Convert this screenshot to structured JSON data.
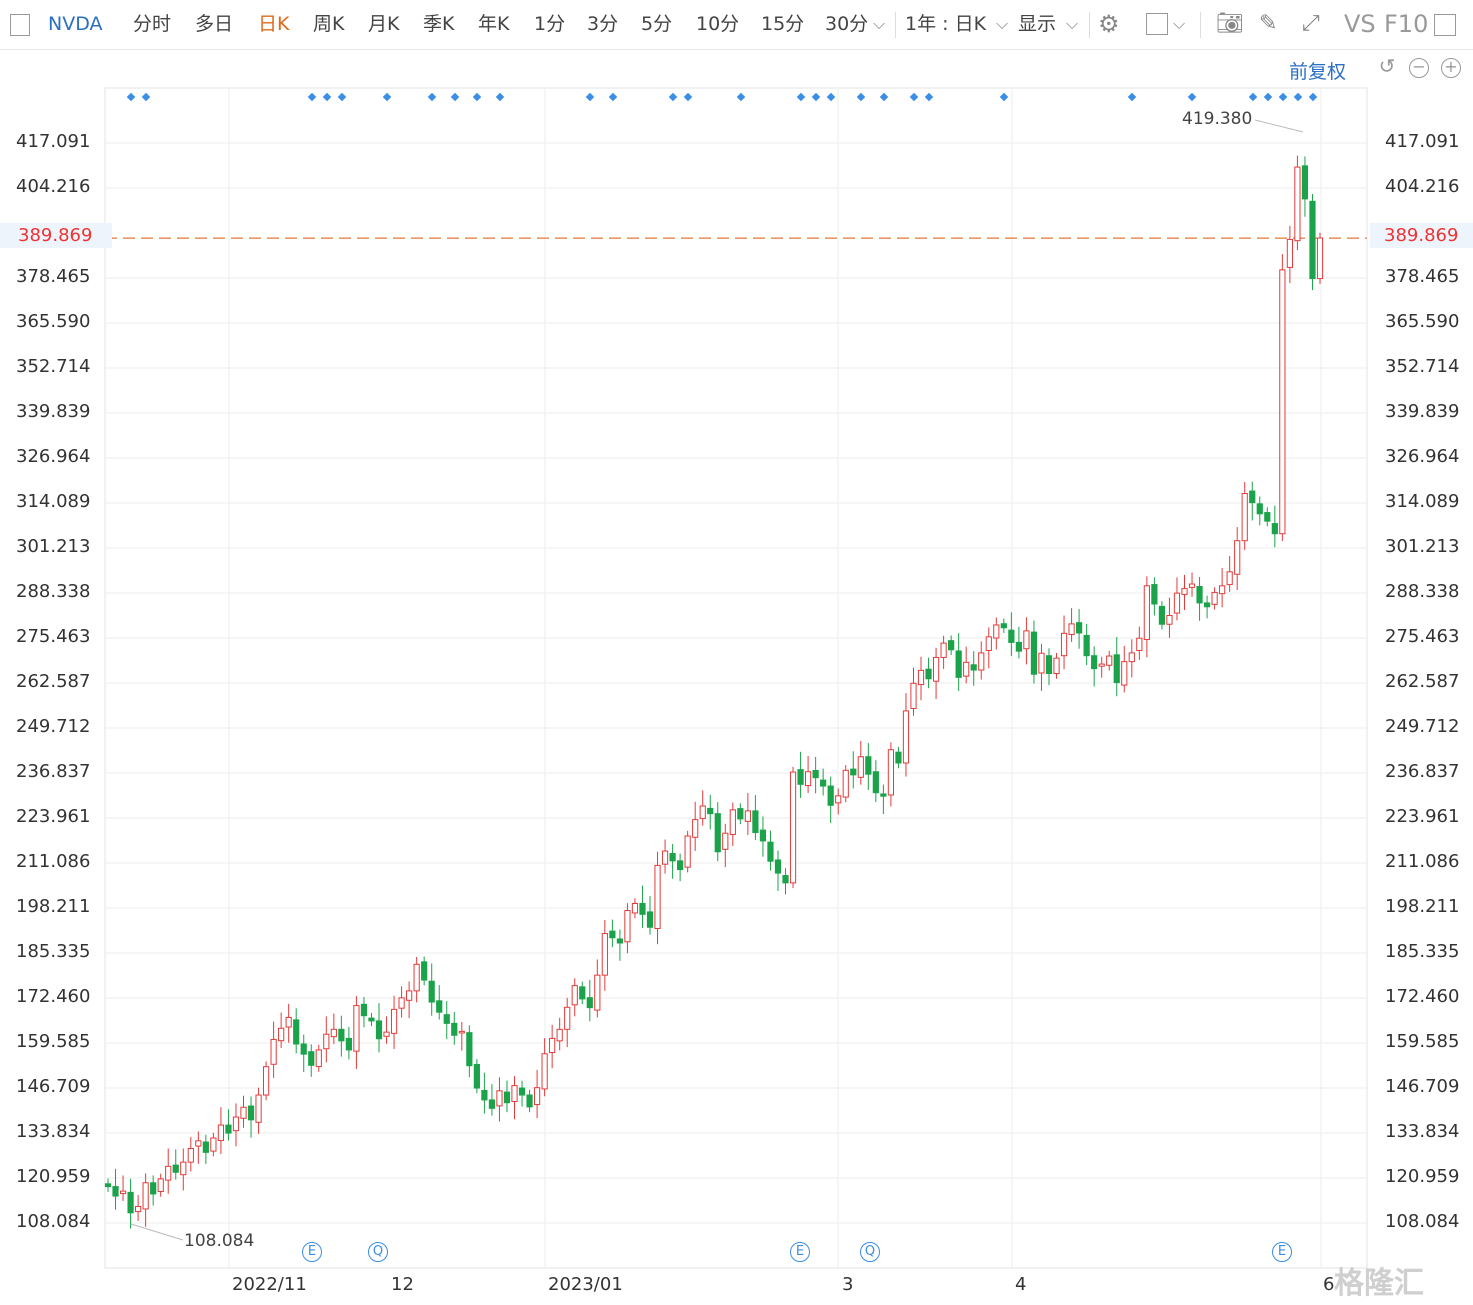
{
  "toolbar": {
    "symbol": "NVDA",
    "periods": [
      "分时",
      "多日",
      "日K",
      "周K",
      "月K",
      "季K",
      "年K",
      "1分",
      "3分",
      "5分",
      "10分",
      "15分",
      "30分"
    ],
    "active_period": "日K",
    "range": "1年 : 日K",
    "display": "显示",
    "vs": "VS",
    "f10": "F10"
  },
  "adjust_label": "前复权",
  "colors": {
    "up": "#e33b3b",
    "down": "#1aa34a",
    "current_line": "#e0793a",
    "event": "#3a8ee6"
  },
  "watermark": "格隆汇",
  "events": [
    "E",
    "Q",
    "E",
    "Q",
    "E"
  ],
  "chart_data": {
    "type": "candlestick",
    "title": "",
    "ylim": [
      102,
      424
    ],
    "y_ticks": [
      "417.091",
      "404.216",
      "389.869",
      "378.465",
      "365.590",
      "352.714",
      "339.839",
      "326.964",
      "314.089",
      "301.213",
      "288.338",
      "275.463",
      "262.587",
      "249.712",
      "236.837",
      "223.961",
      "211.086",
      "198.211",
      "185.335",
      "172.460",
      "159.585",
      "146.709",
      "133.834",
      "120.959",
      "108.084"
    ],
    "current_price": "389.869",
    "max_label": "419.380",
    "min_label": "108.084",
    "x_labels": [
      "2022/11",
      "12",
      "2023/01",
      "3",
      "4",
      "6"
    ],
    "grid": true,
    "series_close": [
      118.5,
      115.8,
      117.2,
      111.0,
      112.8,
      119.6,
      116.4,
      120.7,
      124.3,
      122.6,
      125.5,
      129.4,
      131.6,
      128.3,
      132.4,
      136.1,
      133.8,
      138.4,
      141.2,
      137.6,
      144.7,
      152.8,
      160.6,
      163.8,
      166.9,
      159.3,
      156.4,
      153.2,
      157.6,
      162.1,
      163.5,
      160.2,
      157.6,
      170.3,
      167.4,
      165.9,
      160.8,
      162.7,
      169.2,
      172.5,
      174.5,
      182.1,
      177.6,
      171.3,
      168.4,
      165.2,
      161.8,
      162.9,
      153.1,
      146.7,
      143.3,
      140.9,
      145.9,
      142.5,
      147.4,
      144.7,
      141.3,
      146.8,
      156.5,
      160.9,
      163.5,
      169.8,
      176.0,
      172.2,
      169.7,
      179.0,
      190.9,
      189.7,
      188.2,
      197.5,
      199.5,
      196.4,
      192.7,
      210.4,
      214.5,
      211.7,
      209.2,
      218.8,
      223.5,
      227.4,
      225.2,
      214.3,
      219.6,
      226.3,
      223.7,
      226.0,
      219.8,
      217.4,
      211.6,
      208.2,
      205.4,
      237.1,
      233.6,
      237.2,
      235.5,
      233.1,
      227.6,
      230.3,
      237.6,
      236.3,
      241.5,
      236.5,
      231.2,
      230.2,
      243.5,
      239.7,
      254.6,
      262.5,
      266.2,
      263.8,
      269.9,
      274.0,
      272.1,
      264.2,
      268.5,
      266.3,
      271.2,
      275.8,
      279.2,
      278.4,
      274.2,
      271.7,
      277.5,
      265.1,
      271.1,
      265.3,
      269.7,
      276.8,
      279.5,
      276.9,
      270.4,
      266.7,
      268.0,
      270.3,
      262.7,
      268.7,
      271.2,
      275.4,
      290.4,
      285.2,
      279.4,
      281.9,
      288.3,
      289.6,
      290.9,
      285.5,
      284.4,
      288.5,
      290.4,
      294.4,
      303.3,
      316.8,
      314.2,
      311.0,
      308.9,
      305.3,
      380.8,
      389.5,
      410.2,
      401.1,
      378.3,
      389.9
    ]
  }
}
